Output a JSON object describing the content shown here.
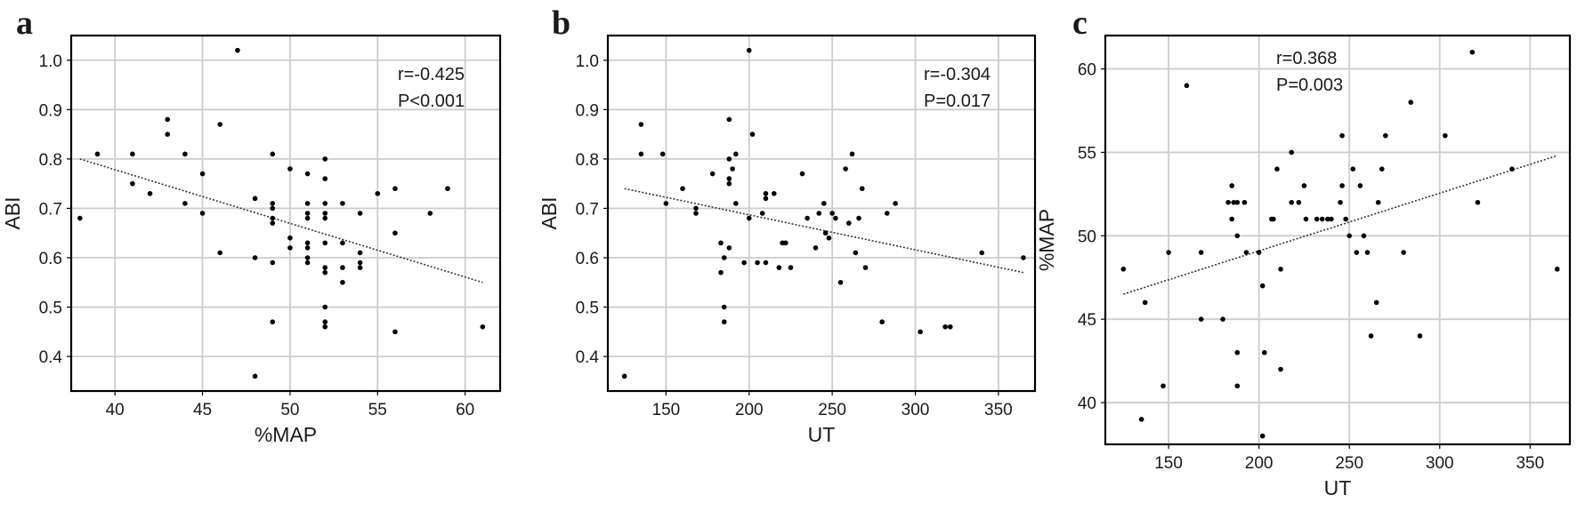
{
  "chart_data": [
    {
      "panel_label": "a",
      "type": "scatter",
      "xlabel": "%MAP",
      "ylabel": "ABI",
      "xlim": [
        37.5,
        62
      ],
      "ylim": [
        0.33,
        1.05
      ],
      "xticks": [
        40,
        45,
        50,
        55,
        60
      ],
      "yticks": [
        0.4,
        0.5,
        0.6,
        0.7,
        0.8,
        0.9,
        1.0
      ],
      "xtick_labels": [
        "40",
        "45",
        "50",
        "55",
        "60"
      ],
      "ytick_labels": [
        "0.4",
        "0.5",
        "0.6",
        "0.7",
        "0.8",
        "0.9",
        "1.0"
      ],
      "grid": true,
      "annotation": [
        "r=-0.425",
        "P<0.001"
      ],
      "annotation_position": "top-right",
      "fit_line": {
        "x": [
          38,
          61
        ],
        "y": [
          0.8,
          0.55
        ]
      },
      "points": [
        [
          38,
          0.68
        ],
        [
          39,
          0.81
        ],
        [
          41,
          0.81
        ],
        [
          41,
          0.75
        ],
        [
          42,
          0.73
        ],
        [
          43,
          0.88
        ],
        [
          43,
          0.85
        ],
        [
          44,
          0.81
        ],
        [
          44,
          0.71
        ],
        [
          45,
          0.77
        ],
        [
          45,
          0.69
        ],
        [
          46,
          0.87
        ],
        [
          46,
          0.61
        ],
        [
          47,
          1.02
        ],
        [
          48,
          0.72
        ],
        [
          48,
          0.6
        ],
        [
          48,
          0.36
        ],
        [
          49,
          0.81
        ],
        [
          49,
          0.71
        ],
        [
          49,
          0.7
        ],
        [
          49,
          0.68
        ],
        [
          49,
          0.67
        ],
        [
          49,
          0.59
        ],
        [
          49,
          0.47
        ],
        [
          50,
          0.78
        ],
        [
          50,
          0.64
        ],
        [
          50,
          0.62
        ],
        [
          51,
          0.77
        ],
        [
          51,
          0.71
        ],
        [
          51,
          0.69
        ],
        [
          51,
          0.68
        ],
        [
          51,
          0.63
        ],
        [
          51,
          0.62
        ],
        [
          51,
          0.6
        ],
        [
          51,
          0.59
        ],
        [
          52,
          0.8
        ],
        [
          52,
          0.76
        ],
        [
          52,
          0.71
        ],
        [
          52,
          0.69
        ],
        [
          52,
          0.68
        ],
        [
          52,
          0.63
        ],
        [
          52,
          0.58
        ],
        [
          52,
          0.57
        ],
        [
          52,
          0.5
        ],
        [
          52,
          0.47
        ],
        [
          52,
          0.46
        ],
        [
          53,
          0.71
        ],
        [
          53,
          0.63
        ],
        [
          53,
          0.58
        ],
        [
          53,
          0.55
        ],
        [
          54,
          0.69
        ],
        [
          54,
          0.61
        ],
        [
          54,
          0.59
        ],
        [
          54,
          0.58
        ],
        [
          55,
          0.73
        ],
        [
          56,
          0.74
        ],
        [
          56,
          0.65
        ],
        [
          56,
          0.45
        ],
        [
          58,
          0.69
        ],
        [
          59,
          0.74
        ],
        [
          61,
          0.46
        ]
      ]
    },
    {
      "panel_label": "b",
      "type": "scatter",
      "xlabel": "UT",
      "ylabel": "ABI",
      "xlim": [
        115,
        372
      ],
      "ylim": [
        0.33,
        1.05
      ],
      "xticks": [
        150,
        200,
        250,
        300,
        350
      ],
      "yticks": [
        0.4,
        0.5,
        0.6,
        0.7,
        0.8,
        0.9,
        1.0
      ],
      "xtick_labels": [
        "150",
        "200",
        "250",
        "300",
        "350"
      ],
      "ytick_labels": [
        "0.4",
        "0.5",
        "0.6",
        "0.7",
        "0.8",
        "0.9",
        "1.0"
      ],
      "grid": true,
      "annotation": [
        "r=-0.304",
        "P=0.017"
      ],
      "annotation_position": "top-right",
      "fit_line": {
        "x": [
          125,
          365
        ],
        "y": [
          0.74,
          0.57
        ]
      },
      "points": [
        [
          125,
          0.36
        ],
        [
          135,
          0.87
        ],
        [
          135,
          0.81
        ],
        [
          148,
          0.81
        ],
        [
          150,
          0.71
        ],
        [
          160,
          0.74
        ],
        [
          168,
          0.7
        ],
        [
          168,
          0.69
        ],
        [
          178,
          0.77
        ],
        [
          183,
          0.57
        ],
        [
          183,
          0.63
        ],
        [
          185,
          0.6
        ],
        [
          185,
          0.5
        ],
        [
          185,
          0.47
        ],
        [
          188,
          0.88
        ],
        [
          188,
          0.8
        ],
        [
          188,
          0.76
        ],
        [
          188,
          0.75
        ],
        [
          188,
          0.62
        ],
        [
          190,
          0.78
        ],
        [
          192,
          0.81
        ],
        [
          192,
          0.71
        ],
        [
          197,
          0.59
        ],
        [
          200,
          1.02
        ],
        [
          200,
          0.68
        ],
        [
          202,
          0.85
        ],
        [
          205,
          0.59
        ],
        [
          208,
          0.69
        ],
        [
          210,
          0.73
        ],
        [
          210,
          0.72
        ],
        [
          210,
          0.59
        ],
        [
          215,
          0.73
        ],
        [
          218,
          0.58
        ],
        [
          220,
          0.63
        ],
        [
          222,
          0.63
        ],
        [
          225,
          0.58
        ],
        [
          232,
          0.77
        ],
        [
          235,
          0.68
        ],
        [
          240,
          0.62
        ],
        [
          242,
          0.69
        ],
        [
          245,
          0.71
        ],
        [
          246,
          0.65
        ],
        [
          248,
          0.64
        ],
        [
          250,
          0.69
        ],
        [
          252,
          0.68
        ],
        [
          255,
          0.55
        ],
        [
          258,
          0.78
        ],
        [
          260,
          0.67
        ],
        [
          262,
          0.81
        ],
        [
          264,
          0.61
        ],
        [
          266,
          0.68
        ],
        [
          268,
          0.74
        ],
        [
          270,
          0.58
        ],
        [
          280,
          0.47
        ],
        [
          283,
          0.69
        ],
        [
          288,
          0.71
        ],
        [
          303,
          0.45
        ],
        [
          318,
          0.46
        ],
        [
          321,
          0.46
        ],
        [
          340,
          0.61
        ],
        [
          365,
          0.6
        ]
      ]
    },
    {
      "panel_label": "c",
      "type": "scatter",
      "xlabel": "UT",
      "ylabel": "%MAP",
      "xlim": [
        115,
        372
      ],
      "ylim": [
        37.5,
        62
      ],
      "xticks": [
        150,
        200,
        250,
        300,
        350
      ],
      "yticks": [
        40,
        45,
        50,
        55,
        60
      ],
      "xtick_labels": [
        "150",
        "200",
        "250",
        "300",
        "350"
      ],
      "ytick_labels": [
        "40",
        "45",
        "50",
        "55",
        "60"
      ],
      "grid": true,
      "annotation": [
        "r=0.368",
        "P=0.003"
      ],
      "annotation_position": "top-center",
      "fit_line": {
        "x": [
          125,
          365
        ],
        "y": [
          46.5,
          54.8
        ]
      },
      "points": [
        [
          125,
          48
        ],
        [
          135,
          39
        ],
        [
          137,
          46
        ],
        [
          147,
          41
        ],
        [
          150,
          49
        ],
        [
          160,
          59
        ],
        [
          168,
          49
        ],
        [
          168,
          45
        ],
        [
          180,
          45
        ],
        [
          183,
          52
        ],
        [
          185,
          53
        ],
        [
          185,
          51
        ],
        [
          186,
          52
        ],
        [
          188,
          41
        ],
        [
          188,
          43
        ],
        [
          188,
          50
        ],
        [
          188,
          52
        ],
        [
          192,
          52
        ],
        [
          193,
          49
        ],
        [
          200,
          49
        ],
        [
          202,
          47
        ],
        [
          202,
          38
        ],
        [
          203,
          43
        ],
        [
          207,
          51
        ],
        [
          208,
          51
        ],
        [
          210,
          54
        ],
        [
          212,
          42
        ],
        [
          212,
          48
        ],
        [
          218,
          52
        ],
        [
          218,
          55
        ],
        [
          222,
          52
        ],
        [
          225,
          53
        ],
        [
          226,
          51
        ],
        [
          232,
          51
        ],
        [
          235,
          51
        ],
        [
          238,
          51
        ],
        [
          240,
          51
        ],
        [
          245,
          52
        ],
        [
          246,
          56
        ],
        [
          246,
          53
        ],
        [
          248,
          51
        ],
        [
          250,
          50
        ],
        [
          252,
          54
        ],
        [
          254,
          49
        ],
        [
          256,
          53
        ],
        [
          258,
          50
        ],
        [
          260,
          49
        ],
        [
          262,
          44
        ],
        [
          265,
          46
        ],
        [
          266,
          52
        ],
        [
          268,
          54
        ],
        [
          270,
          56
        ],
        [
          280,
          49
        ],
        [
          284,
          58
        ],
        [
          289,
          44
        ],
        [
          303,
          56
        ],
        [
          318,
          61
        ],
        [
          321,
          52
        ],
        [
          340,
          54
        ],
        [
          365,
          48
        ]
      ]
    }
  ]
}
